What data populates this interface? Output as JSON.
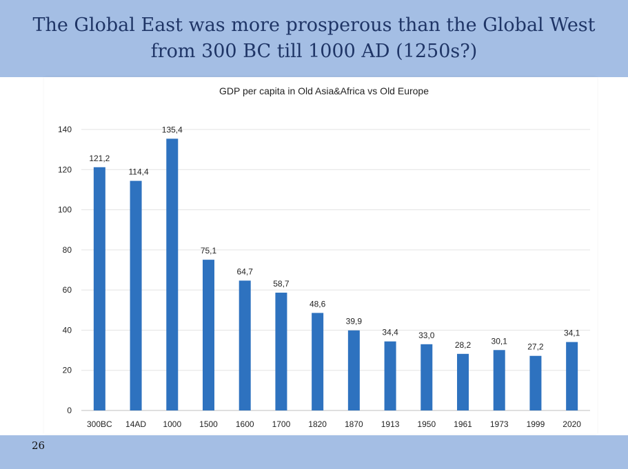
{
  "slide": {
    "title_line1": "The Global East was more prosperous than the Global West",
    "title_line2": "from 300 BC till 1000 AD (1250s?)",
    "page_number": "26"
  },
  "chart_data": {
    "type": "bar",
    "title": "GDP per capita in Old Asia&Africa vs Old Europe",
    "xlabel": "",
    "ylabel": "",
    "categories": [
      "300BC",
      "14AD",
      "1000",
      "1500",
      "1600",
      "1700",
      "1820",
      "1870",
      "1913",
      "1950",
      "1961",
      "1973",
      "1999",
      "2020"
    ],
    "values": [
      121.2,
      114.4,
      135.4,
      75.1,
      64.7,
      58.7,
      48.6,
      39.9,
      34.4,
      33.0,
      28.2,
      30.1,
      27.2,
      34.1
    ],
    "data_labels": [
      "121,2",
      "114,4",
      "135,4",
      "75,1",
      "64,7",
      "58,7",
      "48,6",
      "39,9",
      "34,4",
      "33,0",
      "28,2",
      "30,1",
      "27,2",
      "34,1"
    ],
    "ylim": [
      0,
      140
    ],
    "yticks": [
      0,
      20,
      40,
      60,
      80,
      100,
      120,
      140
    ],
    "bar_color": "#2e72bf",
    "grid": true,
    "legend": false
  }
}
